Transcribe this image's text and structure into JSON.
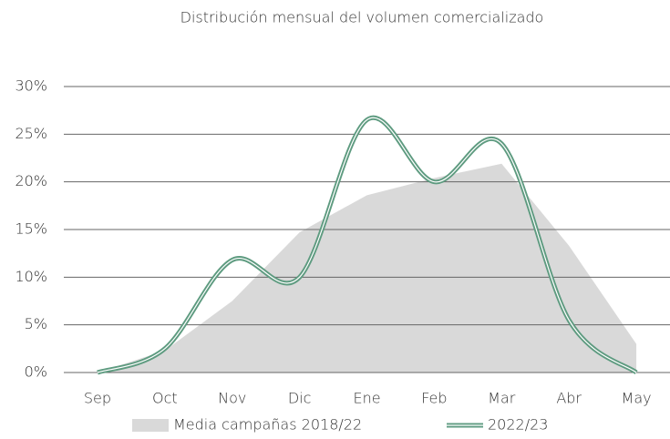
{
  "chart_data": {
    "type": "line",
    "title": "Distribución mensual del volumen comercializado",
    "categories": [
      "Sep",
      "Oct",
      "Nov",
      "Dic",
      "Ene",
      "Feb",
      "Mar",
      "Abr",
      "May"
    ],
    "series": [
      {
        "name": "Media campañas 2018/22",
        "color": "#d9d9d9",
        "kind": "area",
        "values": [
          0,
          2.3,
          7.5,
          14.7,
          18.6,
          20.4,
          21.9,
          13.3,
          3.0
        ]
      },
      {
        "name": "2022/23",
        "color": "#5e9b80",
        "kind": "line",
        "values": [
          0,
          2.5,
          11.8,
          10.0,
          26.5,
          20.0,
          24.0,
          5.5,
          0
        ]
      }
    ],
    "ylim": [
      0,
      30
    ],
    "yticks": [
      {
        "value": 0,
        "label": "0%"
      },
      {
        "value": 5,
        "label": "5%"
      },
      {
        "value": 10,
        "label": "10%"
      },
      {
        "value": 15,
        "label": "15%"
      },
      {
        "value": 20,
        "label": "20%"
      },
      {
        "value": 25,
        "label": "25%"
      },
      {
        "value": 30,
        "label": "30%"
      }
    ],
    "grid": true
  }
}
